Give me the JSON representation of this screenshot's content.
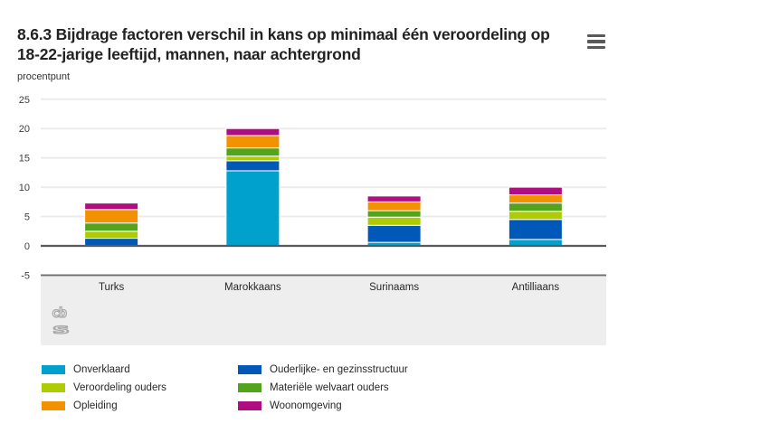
{
  "header": {
    "title": "8.6.3 Bijdrage factoren verschil in kans op minimaal één veroordeling op 18-22-jarige leeftijd, mannen, naar achtergrond",
    "menu_icon": "hamburger-icon"
  },
  "chart_data": {
    "type": "bar",
    "stacked": true,
    "title": "8.6.3 Bijdrage factoren verschil in kans op minimaal één veroordeling op 18-22-jarige leeftijd, mannen, naar achtergrond",
    "ylabel": "procentpunt",
    "xlabel": "",
    "categories": [
      "Turks",
      "Marokkaans",
      "Surinaams",
      "Antilliaans"
    ],
    "stack_order": "bottom-to-top",
    "series": [
      {
        "name": "Onverklaard",
        "color": "#00a1cd",
        "values": [
          0,
          12.8,
          0.6,
          1.1
        ]
      },
      {
        "name": "Ouderlijke- en gezinsstructuur",
        "color": "#0058b8",
        "values": [
          1.3,
          1.7,
          2.9,
          3.4
        ]
      },
      {
        "name": "Veroordeling ouders",
        "color": "#afcb05",
        "values": [
          1.2,
          0.8,
          1.4,
          1.4
        ]
      },
      {
        "name": "Materiële welvaart ouders",
        "color": "#53a31d",
        "values": [
          1.4,
          1.4,
          1.1,
          1.4
        ]
      },
      {
        "name": "Opleiding",
        "color": "#f39200",
        "values": [
          2.3,
          2.1,
          1.5,
          1.4
        ]
      },
      {
        "name": "Woonomgeving",
        "color": "#af0e80",
        "values": [
          1.1,
          1.2,
          1.0,
          1.3
        ]
      }
    ],
    "totals": [
      7.3,
      20.0,
      8.5,
      10.0
    ],
    "y_ticks": [
      25,
      20,
      15,
      10,
      5,
      0,
      -5
    ],
    "ylim": [
      -5,
      25
    ],
    "grid": true,
    "legend_position": "bottom"
  },
  "legend": {
    "columns": [
      [
        {
          "label": "Onverklaard",
          "color": "#00a1cd"
        },
        {
          "label": "Veroordeling ouders",
          "color": "#afcb05"
        },
        {
          "label": "Opleiding",
          "color": "#f39200"
        }
      ],
      [
        {
          "label": "Ouderlijke- en gezinsstructuur",
          "color": "#0058b8"
        },
        {
          "label": "Materiële welvaart ouders",
          "color": "#53a31d"
        },
        {
          "label": "Woonomgeving",
          "color": "#af0e80"
        }
      ]
    ]
  },
  "watermark": {
    "icon": "cbs-logo"
  },
  "colors": {
    "grid_line": "#ebebeb",
    "zero_line": "#595959",
    "axis_band": "#eeeeee",
    "band_border": "#6e6e6e",
    "tick_text": "#404040",
    "category_text": "#282828"
  }
}
